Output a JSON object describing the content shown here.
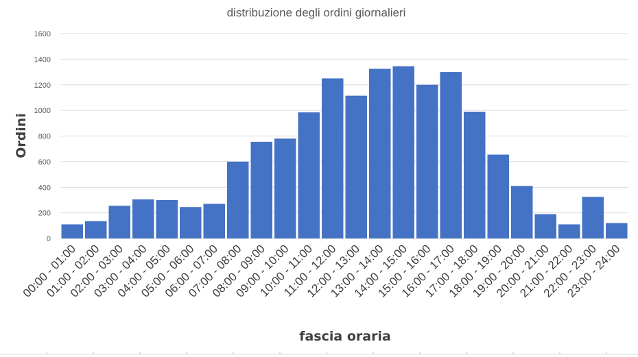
{
  "chart_data": {
    "type": "bar",
    "title": "distribuzione degli ordini giornalieri",
    "xlabel": "fascia oraria",
    "ylabel": "Ordini",
    "ylim": [
      0,
      1600
    ],
    "yticks": [
      0,
      200,
      400,
      600,
      800,
      1000,
      1200,
      1400,
      1600
    ],
    "grid": true,
    "color": "#4472c4",
    "categories": [
      "00:00 - 01:00",
      "01:00 - 02:00",
      "02:00 - 03:00",
      "03:00 - 04:00",
      "04:00 - 05:00",
      "05:00 - 06:00",
      "06:00 - 07:00",
      "07:00 - 08:00",
      "08:00 - 09:00",
      "09:00 - 10:00",
      "10:00 - 11:00",
      "11:00 - 12:00",
      "12:00 - 13:00",
      "13:00 - 14:00",
      "14:00 - 15:00",
      "15:00 - 16:00",
      "16:00 - 17:00",
      "17:00 - 18:00",
      "18:00 - 19:00",
      "19:00 - 20:00",
      "20:00 - 21:00",
      "21:00 - 22:00",
      "22:00 - 23:00",
      "23:00 - 24:00"
    ],
    "values": [
      110,
      135,
      255,
      305,
      300,
      245,
      270,
      600,
      755,
      780,
      985,
      1250,
      1115,
      1325,
      1345,
      1200,
      1300,
      990,
      655,
      410,
      190,
      110,
      325,
      120
    ]
  }
}
